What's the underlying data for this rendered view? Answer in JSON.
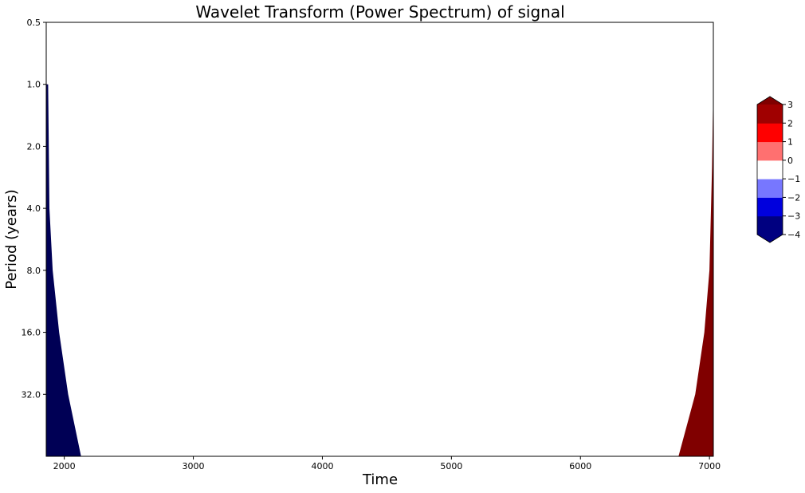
{
  "chart_data": {
    "type": "heatmap",
    "title": "Wavelet Transform (Power Spectrum) of signal",
    "xlabel": "Time",
    "ylabel": "Period (years)",
    "xlim": [
      1860,
      7030
    ],
    "x_ticks": [
      2000,
      3000,
      4000,
      5000,
      6000,
      7000
    ],
    "x_tick_labels": [
      "2000",
      "3000",
      "4000",
      "5000",
      "6000",
      "7000"
    ],
    "y_scale": "log2",
    "ylim": [
      0.5,
      64
    ],
    "y_ticks": [
      0.5,
      1,
      2,
      4,
      8,
      16,
      32
    ],
    "y_tick_labels": [
      "0.5",
      "1.0",
      "2.0",
      "4.0",
      "8.0",
      "16.0",
      "32.0"
    ],
    "y_inverted": true,
    "colorbar": {
      "levels": [
        -4,
        -3,
        -2,
        -1,
        0,
        1,
        2,
        3
      ],
      "tick_labels": [
        "−4",
        "−3",
        "−2",
        "−1",
        "0",
        "1",
        "2",
        "3"
      ],
      "colors": [
        "#000080",
        "#0000dd",
        "#7777ff",
        "#ffffff",
        "#ff7070",
        "#ff0000",
        "#a00000"
      ],
      "extend_low_color": "#000080",
      "extend_high_color": "#800000"
    },
    "regions": [
      {
        "side": "left",
        "color": "#800000",
        "period_top": 1.0,
        "edge_x": [
          [
            1.0,
            1870
          ],
          [
            8,
            1875
          ],
          [
            16,
            1880
          ],
          [
            32,
            1900
          ],
          [
            64,
            1925
          ]
        ]
      },
      {
        "side": "left",
        "color": "#000055",
        "period_top": 1.0,
        "edge_x": [
          [
            1.0,
            1875
          ],
          [
            4,
            1885
          ],
          [
            8,
            1910
          ],
          [
            16,
            1960
          ],
          [
            32,
            2030
          ],
          [
            64,
            2130
          ]
        ]
      },
      {
        "side": "right",
        "color": "#800000",
        "period_top": 1.0,
        "edge_x": [
          [
            1.0,
            7030
          ],
          [
            2.5,
            7020
          ],
          [
            8,
            7000
          ],
          [
            16,
            6960
          ],
          [
            32,
            6890
          ],
          [
            64,
            6760
          ]
        ]
      }
    ]
  }
}
